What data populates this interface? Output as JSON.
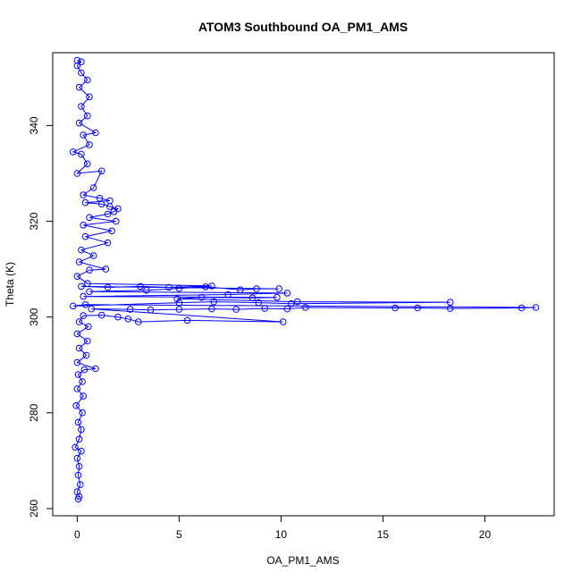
{
  "chart_data": {
    "type": "scatter",
    "title": "ATOM3 Southbound OA_PM1_AMS",
    "xlabel": "OA_PM1_AMS",
    "ylabel": "Theta (K)",
    "xlim": [
      -1.2,
      23.4
    ],
    "ylim": [
      258.5,
      355.2
    ],
    "xticks": [
      0,
      5,
      10,
      15,
      20
    ],
    "yticks": [
      260,
      280,
      300,
      320,
      340
    ],
    "grid": false,
    "legend": "none",
    "marker": "open-circle",
    "connected": true,
    "color": "#0000ff",
    "series": [
      {
        "points": [
          [
            0.05,
            262.0
          ],
          [
            0.1,
            262.5
          ],
          [
            0.0,
            263.5
          ],
          [
            0.15,
            265.0
          ],
          [
            0.05,
            267.0
          ],
          [
            0.1,
            268.8
          ],
          [
            0.0,
            270.5
          ],
          [
            0.2,
            272.0
          ],
          [
            -0.1,
            272.8
          ],
          [
            0.1,
            274.5
          ],
          [
            0.2,
            276.5
          ],
          [
            0.05,
            278.0
          ],
          [
            0.25,
            280.0
          ],
          [
            -0.05,
            281.5
          ],
          [
            0.3,
            283.5
          ],
          [
            0.0,
            285.0
          ],
          [
            0.25,
            286.5
          ],
          [
            0.05,
            288.0
          ],
          [
            0.35,
            289.0
          ],
          [
            0.9,
            289.2
          ],
          [
            0.0,
            290.5
          ],
          [
            0.45,
            292.0
          ],
          [
            0.1,
            293.5
          ],
          [
            0.5,
            295.0
          ],
          [
            0.0,
            296.5
          ],
          [
            0.55,
            298.0
          ],
          [
            0.1,
            299.0
          ],
          [
            0.3,
            300.3
          ],
          [
            1.2,
            300.4
          ],
          [
            2.0,
            300.0
          ],
          [
            2.5,
            299.6
          ],
          [
            3.0,
            299.0
          ],
          [
            5.4,
            299.3
          ],
          [
            10.1,
            299.0
          ],
          [
            0.7,
            301.7
          ],
          [
            2.6,
            301.6
          ],
          [
            3.6,
            301.5
          ],
          [
            5.0,
            301.6
          ],
          [
            6.6,
            301.7
          ],
          [
            7.8,
            301.6
          ],
          [
            9.2,
            301.8
          ],
          [
            10.3,
            301.7
          ],
          [
            11.2,
            302.0
          ],
          [
            15.6,
            301.9
          ],
          [
            16.7,
            301.9
          ],
          [
            18.3,
            301.8
          ],
          [
            21.8,
            301.9
          ],
          [
            22.5,
            302.0
          ],
          [
            0.4,
            302.6
          ],
          [
            -0.2,
            302.3
          ],
          [
            5.0,
            303.0
          ],
          [
            6.7,
            303.2
          ],
          [
            8.9,
            303.0
          ],
          [
            10.5,
            302.8
          ],
          [
            18.3,
            303.1
          ],
          [
            10.8,
            303.2
          ],
          [
            4.9,
            303.8
          ],
          [
            6.1,
            304.1
          ],
          [
            8.6,
            304.0
          ],
          [
            9.8,
            304.1
          ],
          [
            0.3,
            304.3
          ],
          [
            7.4,
            304.7
          ],
          [
            10.3,
            305.0
          ],
          [
            0.6,
            305.3
          ],
          [
            3.4,
            305.6
          ],
          [
            5.0,
            306.0
          ],
          [
            6.3,
            306.3
          ],
          [
            8.0,
            305.7
          ],
          [
            8.8,
            305.9
          ],
          [
            9.9,
            305.9
          ],
          [
            0.2,
            306.4
          ],
          [
            1.5,
            306.2
          ],
          [
            3.1,
            306.4
          ],
          [
            4.5,
            306.2
          ],
          [
            6.6,
            306.5
          ],
          [
            0.5,
            307.0
          ],
          [
            0.0,
            308.5
          ],
          [
            0.6,
            309.8
          ],
          [
            1.4,
            310.0
          ],
          [
            0.1,
            311.5
          ],
          [
            0.8,
            312.8
          ],
          [
            0.2,
            314.0
          ],
          [
            1.5,
            315.5
          ],
          [
            0.4,
            316.8
          ],
          [
            1.7,
            318.0
          ],
          [
            0.3,
            319.2
          ],
          [
            1.9,
            320.0
          ],
          [
            0.6,
            320.8
          ],
          [
            1.5,
            321.5
          ],
          [
            1.8,
            322.0
          ],
          [
            2.0,
            322.6
          ],
          [
            1.6,
            323.1
          ],
          [
            1.2,
            323.6
          ],
          [
            0.4,
            323.9
          ],
          [
            1.6,
            324.3
          ],
          [
            1.1,
            324.8
          ],
          [
            0.3,
            325.5
          ],
          [
            0.8,
            327.0
          ],
          [
            1.2,
            330.5
          ],
          [
            0.0,
            330.0
          ],
          [
            0.5,
            332.0
          ],
          [
            0.2,
            334.0
          ],
          [
            -0.2,
            334.5
          ],
          [
            0.6,
            336.0
          ],
          [
            0.3,
            338.0
          ],
          [
            0.9,
            338.5
          ],
          [
            0.1,
            340.5
          ],
          [
            0.5,
            342.0
          ],
          [
            0.2,
            344.0
          ],
          [
            0.6,
            346.0
          ],
          [
            0.1,
            348.0
          ],
          [
            0.5,
            349.5
          ],
          [
            0.2,
            351.0
          ],
          [
            0.0,
            352.5
          ],
          [
            0.2,
            353.3
          ],
          [
            0.0,
            353.6
          ]
        ]
      }
    ]
  }
}
